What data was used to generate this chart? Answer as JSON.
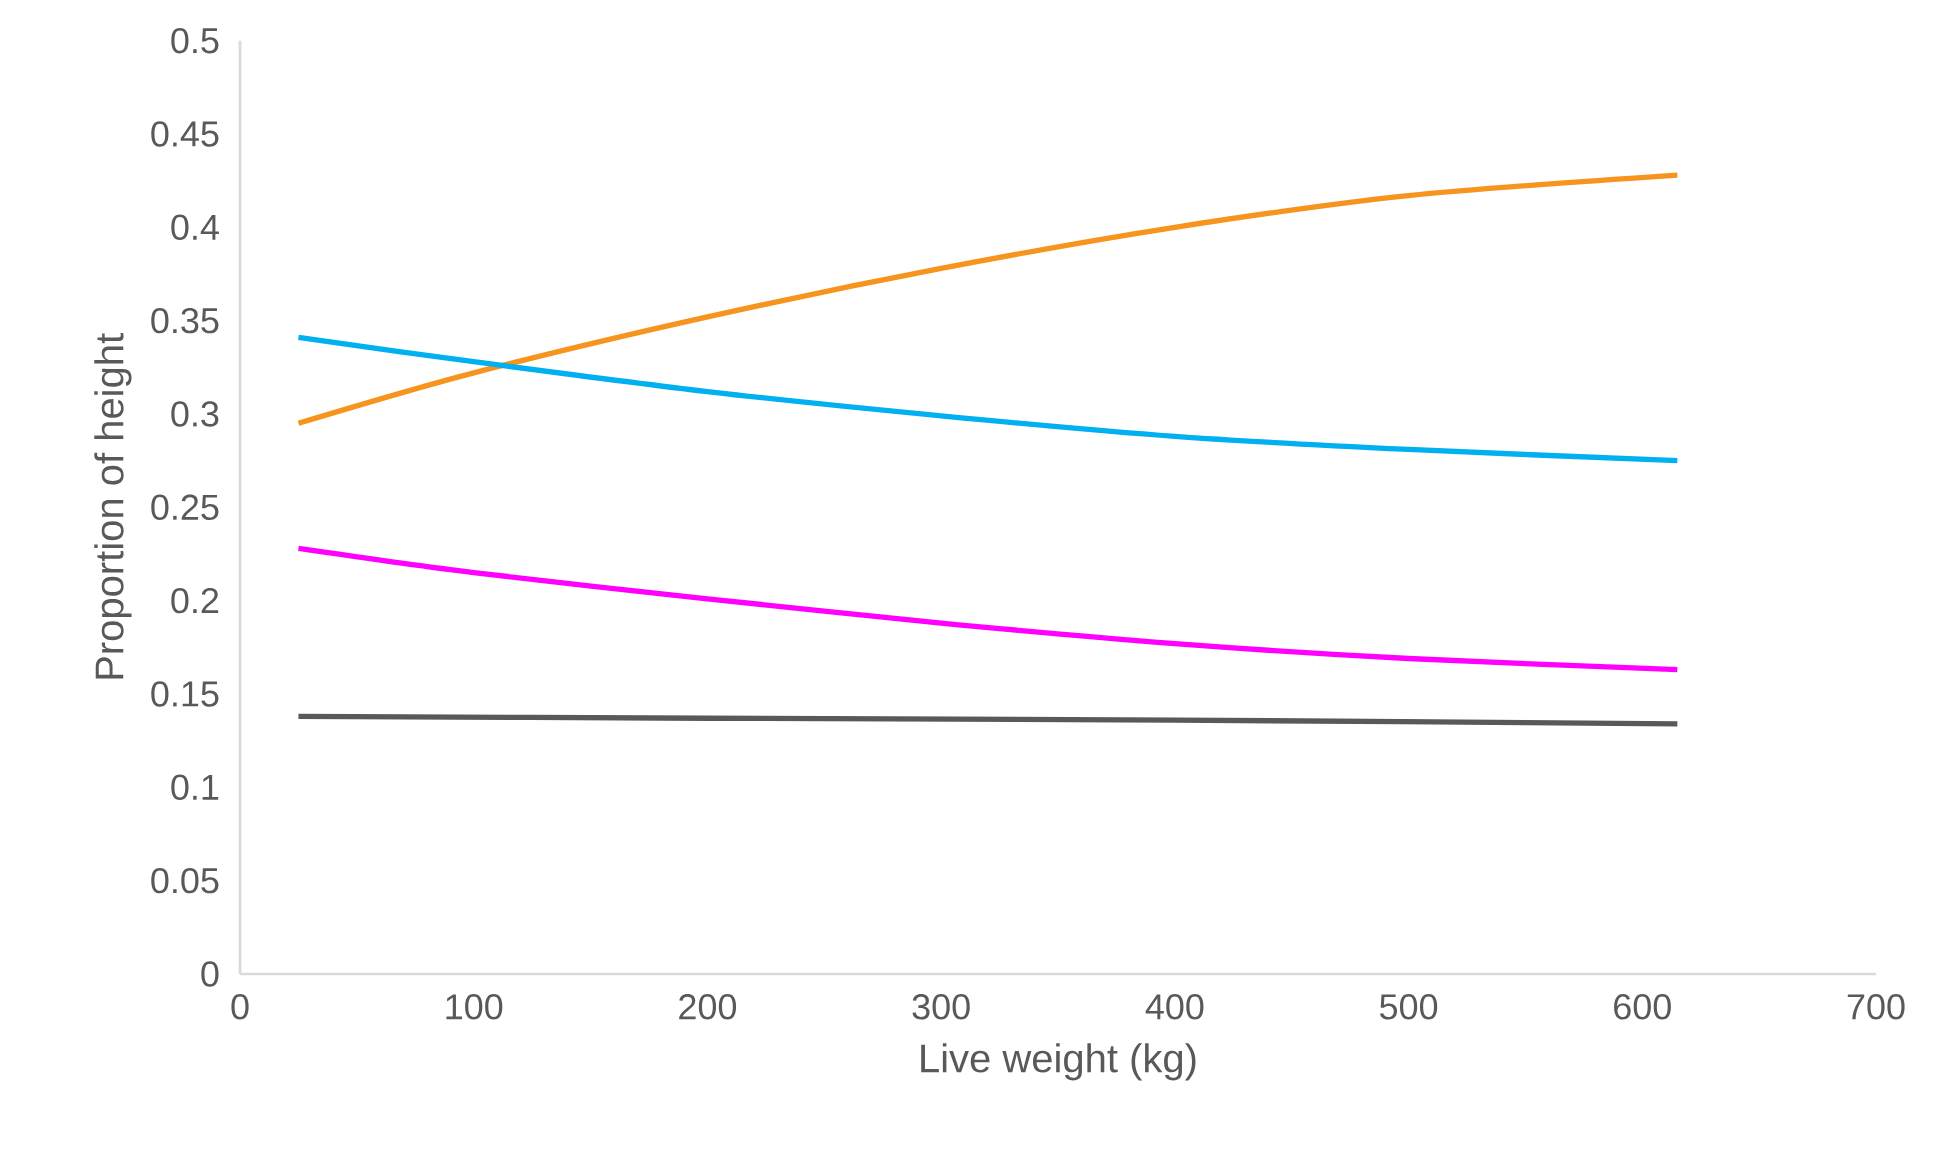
{
  "chart_data": {
    "type": "line",
    "xlabel": "Live weight (kg)",
    "ylabel": "Proportion of height",
    "xlim": [
      0,
      700
    ],
    "xticks": [
      0,
      100,
      200,
      300,
      400,
      500,
      600,
      700
    ],
    "ylim": [
      0,
      0.5
    ],
    "yticks": [
      0,
      0.05,
      0.1,
      0.15,
      0.2,
      0.25,
      0.3,
      0.35,
      0.4,
      0.45,
      0.5
    ],
    "grid": false,
    "marker": "none",
    "line_style": "solid",
    "series": [
      {
        "color": "#f7941d",
        "x": [
          25,
          100,
          200,
          300,
          400,
          500,
          615
        ],
        "values": [
          0.295,
          0.322,
          0.352,
          0.378,
          0.4,
          0.417,
          0.428
        ]
      },
      {
        "color": "#00b0f0",
        "x": [
          25,
          100,
          200,
          300,
          400,
          500,
          615
        ],
        "values": [
          0.341,
          0.328,
          0.312,
          0.299,
          0.288,
          0.281,
          0.275
        ]
      },
      {
        "color": "#ff00ff",
        "x": [
          25,
          100,
          200,
          300,
          400,
          500,
          615
        ],
        "values": [
          0.228,
          0.215,
          0.201,
          0.188,
          0.177,
          0.169,
          0.163
        ]
      },
      {
        "color": "#595959",
        "x": [
          25,
          200,
          400,
          615
        ],
        "values": [
          0.138,
          0.137,
          0.136,
          0.134
        ]
      }
    ]
  }
}
